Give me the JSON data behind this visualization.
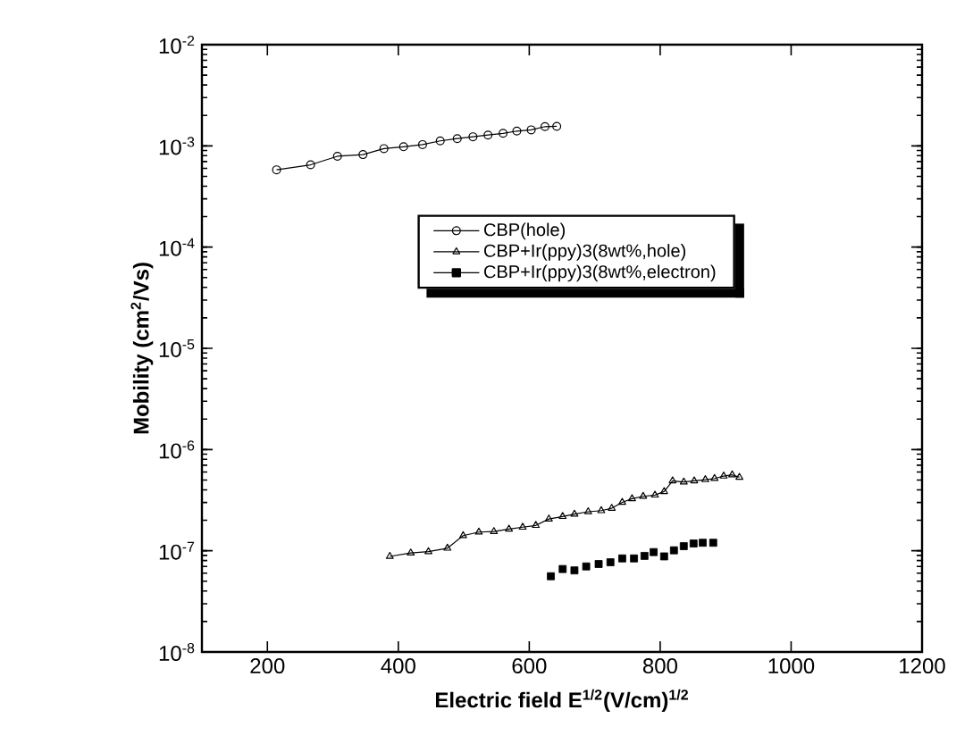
{
  "chart_data": {
    "type": "line",
    "xlabel": "Electric field E$^{1/2}$(V/cm)$^{1/2}$",
    "ylabel": "Mobility (cm$^{2}$/Vs)",
    "log": "y",
    "xlim": [
      100,
      1200
    ],
    "xticks": [
      200,
      400,
      600,
      800,
      1000,
      1200
    ],
    "ylim": [
      1e-08,
      0.01
    ],
    "yticks": [
      {
        "value": 1e-08,
        "label": "10$^{-8}$"
      },
      {
        "value": 1e-07,
        "label": "10$^{-7}$"
      },
      {
        "value": 1e-06,
        "label": "10$^{-6}$"
      },
      {
        "value": 1e-05,
        "label": "10$^{-5}$"
      },
      {
        "value": 0.0001,
        "label": "10$^{-4}$"
      },
      {
        "value": 0.001,
        "label": "10$^{-3}$"
      },
      {
        "value": 0.01,
        "label": "10$^{-2}$"
      }
    ],
    "legend": "top",
    "grid": false,
    "series": [
      {
        "name": "CBP(hole)",
        "marker": "circle",
        "color": "#000000",
        "x": [
          214,
          266,
          307,
          346,
          378,
          408,
          437,
          464,
          490,
          514,
          537,
          560,
          581,
          603,
          624,
          642
        ],
        "values": [
          0.00058,
          0.00065,
          0.00079,
          0.00082,
          0.00094,
          0.00098,
          0.00103,
          0.00112,
          0.00118,
          0.00123,
          0.00128,
          0.00133,
          0.0014,
          0.00144,
          0.00155,
          0.00156
        ]
      },
      {
        "name": "CBP+Ir(ppy)3(8wt%,hole)",
        "marker": "triangle",
        "color": "#000000",
        "x": [
          387,
          419,
          446,
          475,
          499,
          523,
          546,
          569,
          590,
          610,
          630,
          651,
          669,
          690,
          710,
          726,
          742,
          757,
          774,
          792,
          806,
          819,
          836,
          852,
          869,
          883,
          897,
          910,
          921
        ],
        "values": [
          8.8e-08,
          9.5e-08,
          9.8e-08,
          1.06e-07,
          1.41e-07,
          1.53e-07,
          1.55e-07,
          1.64e-07,
          1.71e-07,
          1.78e-07,
          2.06e-07,
          2.18e-07,
          2.3e-07,
          2.43e-07,
          2.49e-07,
          2.63e-07,
          3.01e-07,
          3.27e-07,
          3.45e-07,
          3.55e-07,
          3.85e-07,
          4.91e-07,
          4.78e-07,
          4.91e-07,
          5.04e-07,
          5.18e-07,
          5.47e-07,
          5.62e-07,
          5.32e-07
        ]
      },
      {
        "name": "CBP+Ir(ppy)3(8wt%,electron)",
        "type": "scatter",
        "marker": "square",
        "color": "#000000",
        "x": [
          633,
          651,
          669,
          687,
          706,
          724,
          742,
          760,
          776,
          790,
          806,
          821,
          836,
          851,
          865,
          881
        ],
        "values": [
          5.6e-08,
          6.6e-08,
          6.4e-08,
          7e-08,
          7.4e-08,
          7.7e-08,
          8.4e-08,
          8.4e-08,
          8.9e-08,
          9.7e-08,
          8.8e-08,
          1.01e-07,
          1.11e-07,
          1.18e-07,
          1.2e-07,
          1.2e-07
        ]
      }
    ]
  }
}
